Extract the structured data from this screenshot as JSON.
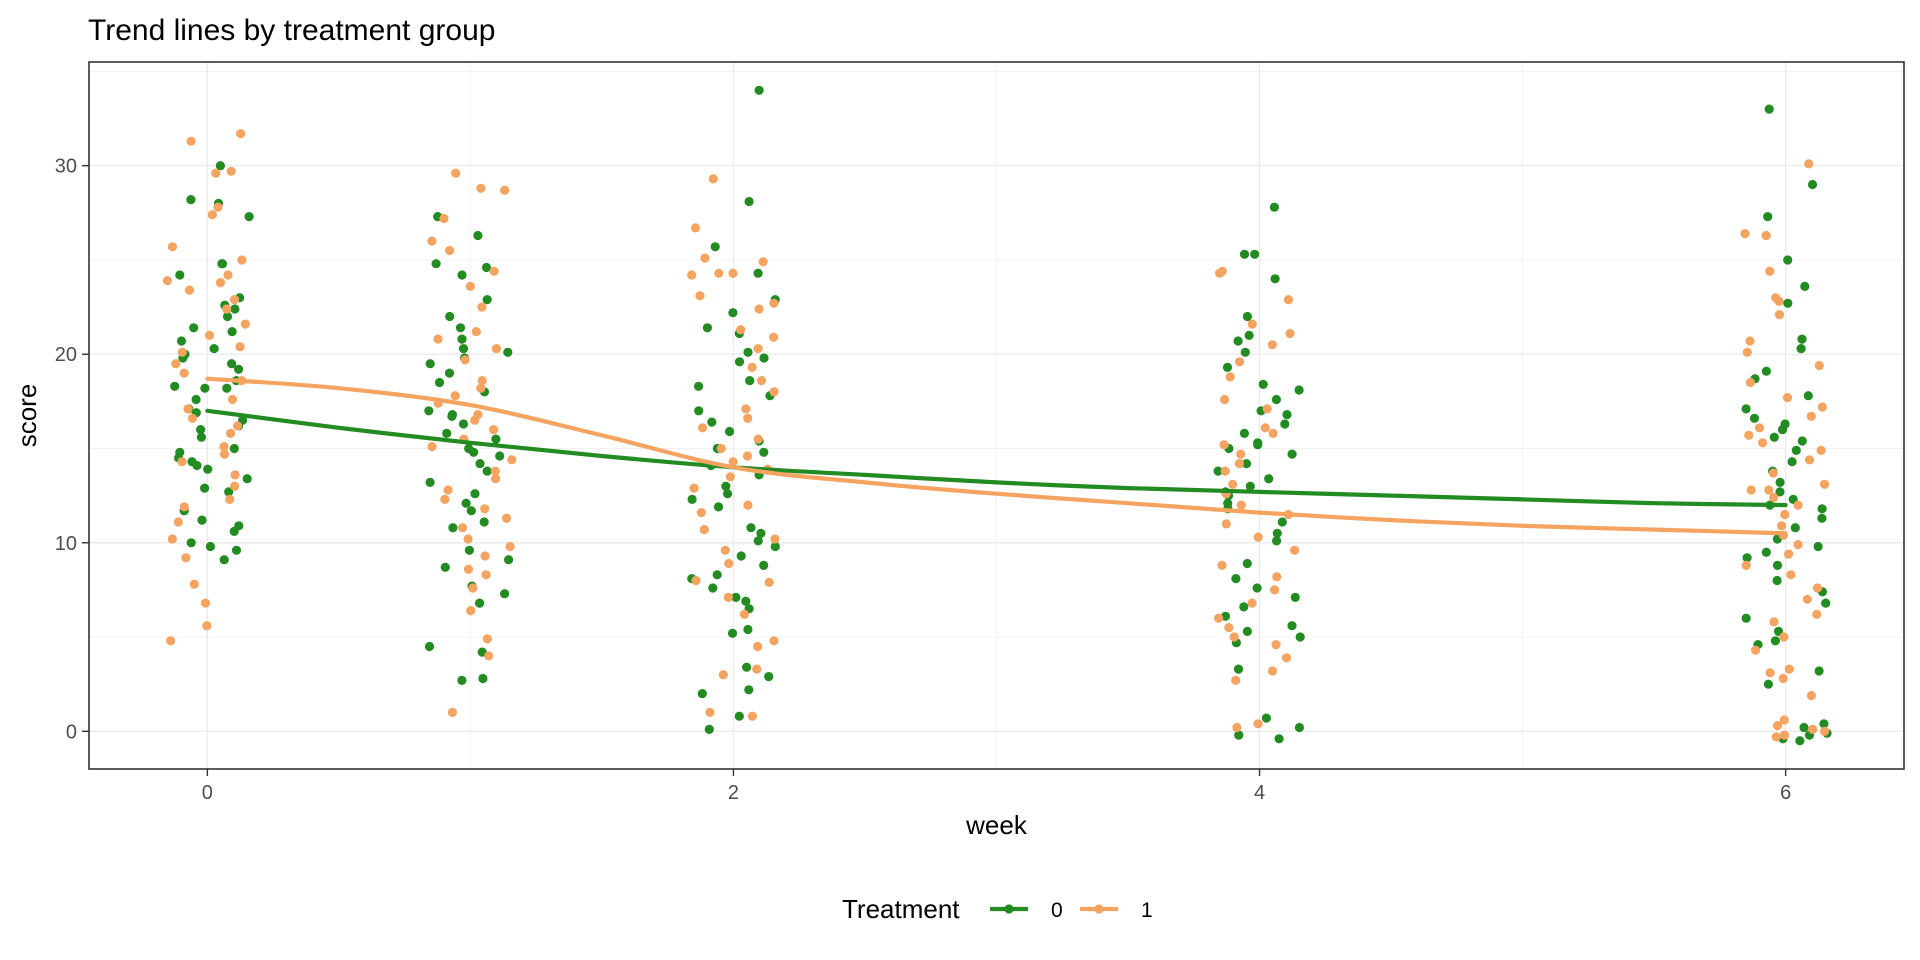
{
  "chart_data": {
    "type": "scatter",
    "title": "Trend lines by treatment group",
    "xlabel": "week",
    "ylabel": "score",
    "xlim": [
      -0.45,
      6.45
    ],
    "ylim": [
      -2,
      35.5
    ],
    "x_ticks": [
      0,
      2,
      4,
      6
    ],
    "y_ticks": [
      0,
      10,
      20,
      30
    ],
    "grid": true,
    "legend": {
      "title": "Treatment",
      "position": "bottom"
    },
    "jitter_width": 0.16,
    "series": [
      {
        "name": "0",
        "color": "#228b22",
        "trend": {
          "x": [
            0,
            0.5,
            1,
            1.5,
            2,
            2.5,
            3,
            3.5,
            4,
            4.5,
            5,
            5.5,
            6
          ],
          "y": [
            17.0,
            16.1,
            15.3,
            14.6,
            14.0,
            13.6,
            13.2,
            12.9,
            12.7,
            12.5,
            12.3,
            12.1,
            12.0
          ]
        },
        "points": [
          {
            "week": 0,
            "scores": [
              30.0,
              28.2,
              28.0,
              27.3,
              24.8,
              24.8,
              24.2,
              23.0,
              22.6,
              22.4,
              22.0,
              21.4,
              21.2,
              20.7,
              20.3,
              20.0,
              19.8,
              19.5,
              19.2,
              18.6,
              18.3,
              18.2,
              18.2,
              17.6,
              17.1,
              16.9,
              16.5,
              16.2,
              16.0,
              15.6,
              15.0,
              14.8,
              14.5,
              14.3,
              14.1,
              13.9,
              13.4,
              12.9,
              12.7,
              11.7,
              11.2,
              10.9,
              10.6,
              10.0,
              9.8,
              9.6,
              9.1
            ]
          },
          {
            "week": 1,
            "scores": [
              27.3,
              26.3,
              24.8,
              24.6,
              24.2,
              22.9,
              22.0,
              21.4,
              20.8,
              20.3,
              20.1,
              19.8,
              19.5,
              19.0,
              18.5,
              18.0,
              17.0,
              16.8,
              16.7,
              16.3,
              15.8,
              15.5,
              15.0,
              14.8,
              14.6,
              14.2,
              13.8,
              13.2,
              12.6,
              12.1,
              11.7,
              11.1,
              10.8,
              9.6,
              9.1,
              8.7,
              7.7,
              7.3,
              6.8,
              4.5,
              4.2,
              2.8,
              2.7
            ]
          },
          {
            "week": 2,
            "scores": [
              34.0,
              28.1,
              25.7,
              24.3,
              22.9,
              22.2,
              21.4,
              21.1,
              20.1,
              19.8,
              19.6,
              18.6,
              18.3,
              17.8,
              17.0,
              16.4,
              15.9,
              15.4,
              15.0,
              14.8,
              14.1,
              13.6,
              13.0,
              12.6,
              12.3,
              11.9,
              10.8,
              10.5,
              10.1,
              9.8,
              9.3,
              8.8,
              8.3,
              8.1,
              7.6,
              7.1,
              6.9,
              6.5,
              5.4,
              5.2,
              3.4,
              2.9,
              2.2,
              2.0,
              0.8,
              0.1
            ]
          },
          {
            "week": 4,
            "scores": [
              27.8,
              25.3,
              25.3,
              24.0,
              22.0,
              21.0,
              20.7,
              20.1,
              19.3,
              18.4,
              18.1,
              17.6,
              17.0,
              16.8,
              16.3,
              15.8,
              15.3,
              15.2,
              15.0,
              14.7,
              14.2,
              13.8,
              13.4,
              13.0,
              12.7,
              12.5,
              12.1,
              11.8,
              11.1,
              10.5,
              10.1,
              8.9,
              8.1,
              7.6,
              7.1,
              6.6,
              6.1,
              5.6,
              5.3,
              5.0,
              4.7,
              3.3,
              0.7,
              0.2,
              -0.2,
              -0.4
            ]
          },
          {
            "week": 6,
            "scores": [
              33.0,
              29.0,
              27.3,
              25.0,
              23.6,
              22.7,
              20.8,
              20.3,
              19.1,
              18.7,
              17.8,
              17.1,
              16.6,
              16.3,
              16.0,
              15.6,
              15.4,
              14.9,
              14.3,
              13.8,
              13.2,
              12.7,
              12.3,
              12.0,
              11.8,
              11.3,
              10.8,
              10.2,
              9.8,
              9.5,
              9.2,
              8.8,
              8.0,
              7.4,
              6.8,
              6.0,
              5.3,
              4.8,
              4.6,
              3.2,
              2.5,
              0.4,
              0.2,
              -0.1,
              -0.2,
              -0.4,
              -0.5
            ]
          }
        ]
      },
      {
        "name": "1",
        "color": "#f4a460",
        "trend": {
          "x": [
            0,
            0.5,
            1,
            1.5,
            2,
            2.5,
            3,
            3.5,
            4,
            4.5,
            5,
            5.5,
            6
          ],
          "y": [
            18.7,
            18.2,
            17.3,
            15.7,
            14.0,
            13.2,
            12.6,
            12.1,
            11.6,
            11.2,
            10.9,
            10.7,
            10.5
          ]
        },
        "points": [
          {
            "week": 0,
            "scores": [
              31.7,
              31.3,
              29.7,
              29.6,
              27.8,
              27.4,
              25.7,
              25.0,
              24.2,
              23.9,
              23.8,
              23.4,
              22.9,
              22.4,
              21.6,
              21.0,
              20.4,
              20.1,
              19.5,
              19.0,
              18.6,
              17.6,
              17.1,
              16.6,
              16.2,
              15.8,
              15.1,
              14.7,
              14.3,
              13.6,
              13.0,
              12.3,
              11.9,
              11.1,
              10.2,
              9.2,
              7.8,
              6.8,
              5.6,
              4.8
            ]
          },
          {
            "week": 1,
            "scores": [
              29.6,
              28.8,
              28.7,
              27.2,
              26.0,
              25.5,
              24.4,
              23.6,
              22.5,
              21.2,
              20.8,
              20.3,
              19.7,
              18.6,
              18.2,
              17.8,
              17.4,
              16.8,
              16.5,
              16.0,
              15.5,
              15.1,
              14.4,
              13.8,
              13.4,
              12.8,
              12.3,
              11.8,
              11.3,
              10.8,
              10.2,
              9.8,
              9.3,
              8.6,
              8.3,
              7.6,
              6.4,
              4.9,
              4.0,
              1.0
            ]
          },
          {
            "week": 2,
            "scores": [
              29.3,
              26.7,
              25.1,
              24.9,
              24.3,
              24.3,
              24.2,
              23.1,
              22.7,
              22.4,
              21.3,
              20.9,
              20.3,
              19.3,
              18.6,
              18.0,
              17.1,
              16.6,
              16.1,
              15.5,
              15.0,
              14.6,
              14.3,
              13.9,
              13.5,
              12.9,
              12.0,
              11.6,
              10.7,
              10.2,
              9.6,
              8.9,
              8.0,
              7.9,
              7.1,
              6.2,
              4.8,
              4.5,
              3.3,
              3.0,
              1.0,
              0.8
            ]
          },
          {
            "week": 4,
            "scores": [
              24.4,
              24.3,
              22.9,
              21.6,
              21.1,
              20.5,
              19.6,
              18.8,
              17.6,
              17.1,
              16.1,
              15.8,
              15.2,
              14.7,
              14.2,
              13.8,
              13.1,
              12.6,
              12.0,
              11.5,
              11.0,
              10.3,
              9.6,
              8.8,
              8.2,
              7.5,
              6.8,
              6.0,
              5.5,
              5.0,
              4.6,
              3.9,
              3.2,
              2.7,
              0.4,
              0.2
            ]
          },
          {
            "week": 6,
            "scores": [
              30.1,
              26.4,
              26.3,
              24.4,
              23.0,
              22.8,
              22.1,
              20.7,
              20.1,
              19.4,
              18.5,
              17.7,
              17.2,
              16.7,
              16.1,
              15.7,
              15.3,
              14.9,
              14.4,
              13.7,
              13.1,
              12.8,
              12.8,
              12.4,
              12.0,
              11.5,
              10.9,
              10.4,
              9.9,
              9.4,
              8.8,
              8.3,
              7.6,
              7.0,
              6.2,
              5.8,
              5.0,
              4.3,
              3.3,
              3.1,
              2.8,
              1.9,
              0.6,
              0.3,
              0.1,
              0.0,
              -0.2,
              -0.3
            ]
          }
        ]
      }
    ]
  }
}
